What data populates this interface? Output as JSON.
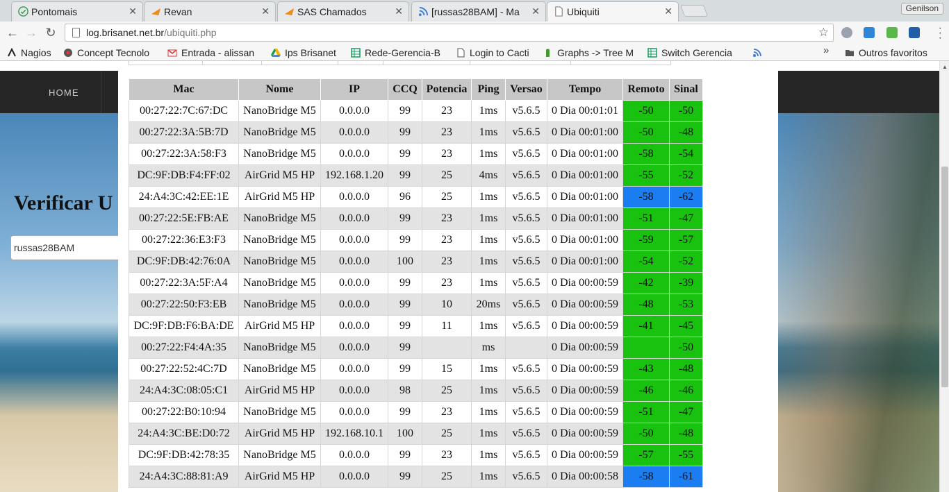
{
  "browser": {
    "tabs": [
      {
        "label": "Pontomais",
        "icon": "check-icon",
        "active": false
      },
      {
        "label": "Revan",
        "icon": "flag-icon",
        "active": false
      },
      {
        "label": "SAS Chamados",
        "icon": "flag-icon",
        "active": false
      },
      {
        "label": "[russas28BAM] - Ma",
        "icon": "rss-icon",
        "active": false
      },
      {
        "label": "Ubiquiti",
        "icon": "page-icon",
        "active": true
      }
    ],
    "close_glyph": "✕",
    "profile": "Genilson",
    "url_host": "log.brisanet.net.br",
    "url_path": "/ubiquiti.php",
    "bookmarks": [
      {
        "label": "Nagios",
        "icon": "nagios-icon"
      },
      {
        "label": "Concept Tecnolo",
        "icon": "concept-icon"
      },
      {
        "label": "Entrada - alissan",
        "icon": "gmail-icon"
      },
      {
        "label": "Ips Brisanet",
        "icon": "drive-icon"
      },
      {
        "label": "Rede-Gerencia-B",
        "icon": "sheet-icon"
      },
      {
        "label": "Login to Cacti",
        "icon": "page-icon"
      },
      {
        "label": "Graphs -> Tree M",
        "icon": "cacti-icon"
      },
      {
        "label": "Switch Gerencia",
        "icon": "sheet-icon"
      },
      {
        "label": "",
        "icon": "rss-icon"
      }
    ],
    "more_glyph": "»",
    "other_bookmarks": "Outros favoritos"
  },
  "page": {
    "nav_home": "HOME",
    "heading": "Verificar U",
    "search_value": "russas28BAM"
  },
  "table": {
    "headers": [
      "Mac",
      "Nome",
      "IP",
      "CCQ",
      "Potencia",
      "Ping",
      "Versao",
      "Tempo",
      "Remoto",
      "Sinal"
    ],
    "rows": [
      [
        "00:27:22:7C:67:DC",
        "NanoBridge M5",
        "0.0.0.0",
        "99",
        "23",
        "1ms",
        "v5.6.5",
        "0 Dia 00:01:01",
        "-50",
        "-50"
      ],
      [
        "00:27:22:3A:5B:7D",
        "NanoBridge M5",
        "0.0.0.0",
        "99",
        "23",
        "1ms",
        "v5.6.5",
        "0 Dia 00:01:00",
        "-50",
        "-48"
      ],
      [
        "00:27:22:3A:58:F3",
        "NanoBridge M5",
        "0.0.0.0",
        "99",
        "23",
        "1ms",
        "v5.6.5",
        "0 Dia 00:01:00",
        "-58",
        "-54"
      ],
      [
        "DC:9F:DB:F4:FF:02",
        "AirGrid M5 HP",
        "192.168.1.20",
        "99",
        "25",
        "4ms",
        "v5.6.5",
        "0 Dia 00:01:00",
        "-55",
        "-52"
      ],
      [
        "24:A4:3C:42:EE:1E",
        "AirGrid M5 HP",
        "0.0.0.0",
        "96",
        "25",
        "1ms",
        "v5.6.5",
        "0 Dia 00:01:00",
        "-58",
        "-62"
      ],
      [
        "00:27:22:5E:FB:AE",
        "NanoBridge M5",
        "0.0.0.0",
        "99",
        "23",
        "1ms",
        "v5.6.5",
        "0 Dia 00:01:00",
        "-51",
        "-47"
      ],
      [
        "00:27:22:36:E3:F3",
        "NanoBridge M5",
        "0.0.0.0",
        "99",
        "23",
        "1ms",
        "v5.6.5",
        "0 Dia 00:01:00",
        "-59",
        "-57"
      ],
      [
        "DC:9F:DB:42:76:0A",
        "NanoBridge M5",
        "0.0.0.0",
        "100",
        "23",
        "1ms",
        "v5.6.5",
        "0 Dia 00:01:00",
        "-54",
        "-52"
      ],
      [
        "00:27:22:3A:5F:A4",
        "NanoBridge M5",
        "0.0.0.0",
        "99",
        "23",
        "1ms",
        "v5.6.5",
        "0 Dia 00:00:59",
        "-42",
        "-39"
      ],
      [
        "00:27:22:50:F3:EB",
        "NanoBridge M5",
        "0.0.0.0",
        "99",
        "10",
        "20ms",
        "v5.6.5",
        "0 Dia 00:00:59",
        "-48",
        "-53"
      ],
      [
        "DC:9F:DB:F6:BA:DE",
        "AirGrid M5 HP",
        "0.0.0.0",
        "99",
        "11",
        "1ms",
        "v5.6.5",
        "0 Dia 00:00:59",
        "-41",
        "-45"
      ],
      [
        "00:27:22:F4:4A:35",
        "NanoBridge M5",
        "0.0.0.0",
        "99",
        "",
        "ms",
        "",
        "0 Dia 00:00:59",
        "",
        "-50"
      ],
      [
        "00:27:22:52:4C:7D",
        "NanoBridge M5",
        "0.0.0.0",
        "99",
        "15",
        "1ms",
        "v5.6.5",
        "0 Dia 00:00:59",
        "-43",
        "-48"
      ],
      [
        "24:A4:3C:08:05:C1",
        "AirGrid M5 HP",
        "0.0.0.0",
        "98",
        "25",
        "1ms",
        "v5.6.5",
        "0 Dia 00:00:59",
        "-46",
        "-46"
      ],
      [
        "00:27:22:B0:10:94",
        "NanoBridge M5",
        "0.0.0.0",
        "99",
        "23",
        "1ms",
        "v5.6.5",
        "0 Dia 00:00:59",
        "-51",
        "-47"
      ],
      [
        "24:A4:3C:BE:D0:72",
        "AirGrid M5 HP",
        "192.168.10.1",
        "100",
        "25",
        "1ms",
        "v5.6.5",
        "0 Dia 00:00:59",
        "-50",
        "-48"
      ],
      [
        "DC:9F:DB:42:78:35",
        "NanoBridge M5",
        "0.0.0.0",
        "99",
        "23",
        "1ms",
        "v5.6.5",
        "0 Dia 00:00:59",
        "-57",
        "-55"
      ],
      [
        "24:A4:3C:88:81:A9",
        "AirGrid M5 HP",
        "0.0.0.0",
        "99",
        "25",
        "1ms",
        "v5.6.5",
        "0 Dia 00:00:58",
        "-58",
        "-61"
      ]
    ],
    "signal_colors": [
      [
        "green",
        "green"
      ],
      [
        "green",
        "green"
      ],
      [
        "green",
        "green"
      ],
      [
        "green",
        "green"
      ],
      [
        "blue",
        "blue"
      ],
      [
        "green",
        "green"
      ],
      [
        "green",
        "green"
      ],
      [
        "green",
        "green"
      ],
      [
        "green",
        "green"
      ],
      [
        "green",
        "green"
      ],
      [
        "green",
        "green"
      ],
      [
        "green",
        "green"
      ],
      [
        "green",
        "green"
      ],
      [
        "green",
        "green"
      ],
      [
        "green",
        "green"
      ],
      [
        "green",
        "green"
      ],
      [
        "green",
        "green"
      ],
      [
        "blue",
        "blue"
      ]
    ],
    "colors": {
      "good": "#19c20f",
      "weak": "#1a7df2",
      "header": "#c7c7c7",
      "row_alt": "#e3e3e3"
    }
  }
}
